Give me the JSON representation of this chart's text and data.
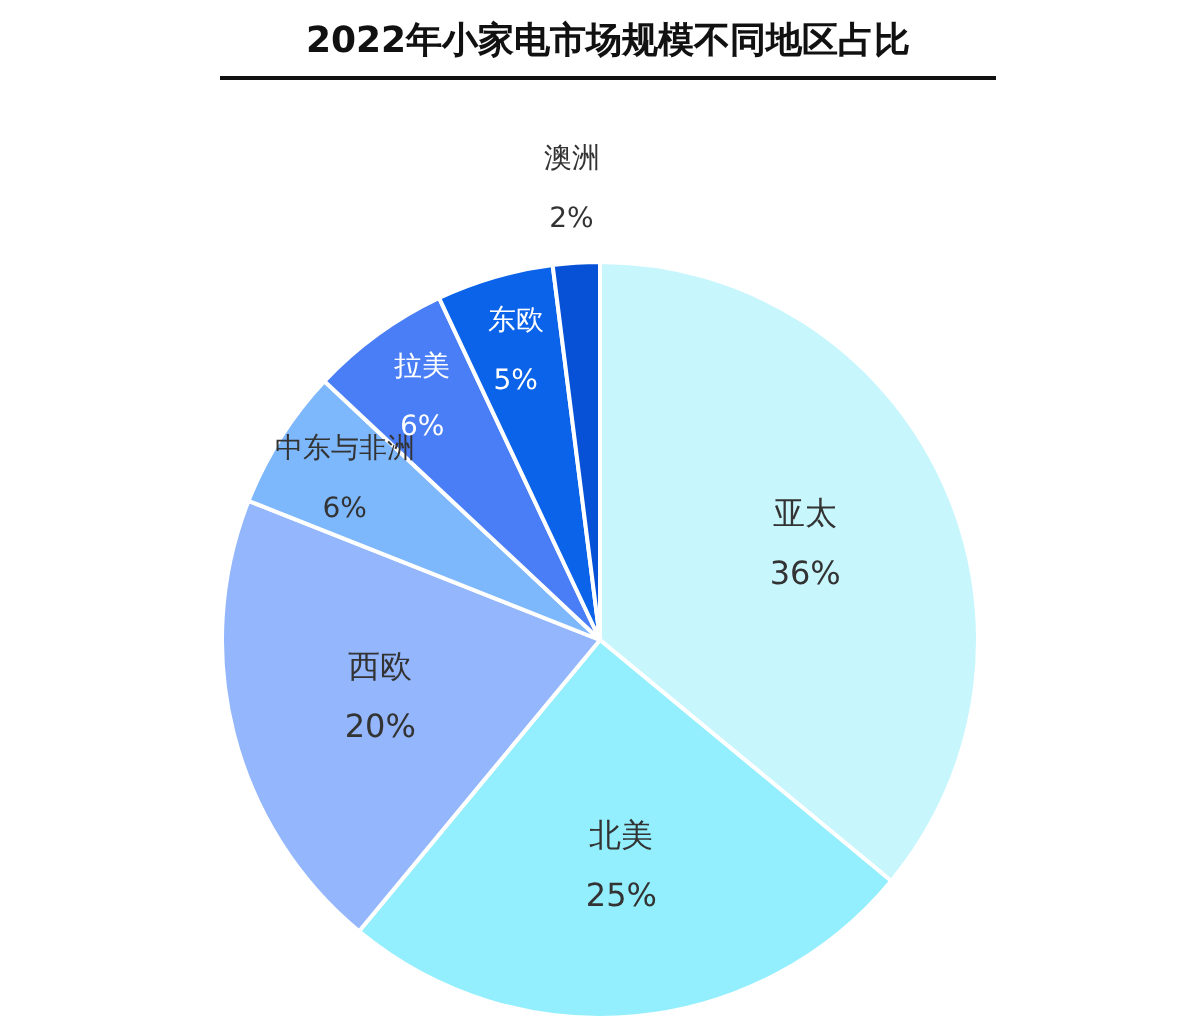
{
  "chart_data": {
    "type": "pie",
    "title": "2022年小家电市场规模不同地区占比",
    "categories": [
      "亚太",
      "北美",
      "西欧",
      "中东与非洲",
      "拉美",
      "东欧",
      "澳洲"
    ],
    "values": [
      36,
      25,
      20,
      6,
      6,
      5,
      2
    ],
    "colors": [
      "#c8f6fd",
      "#93effd",
      "#93b6fc",
      "#7db7fc",
      "#4a7ef6",
      "#0a63e8",
      "#0751d6"
    ],
    "value_labels": [
      "36%",
      "25%",
      "20%",
      "6%",
      "6%",
      "5%",
      "2%"
    ]
  }
}
